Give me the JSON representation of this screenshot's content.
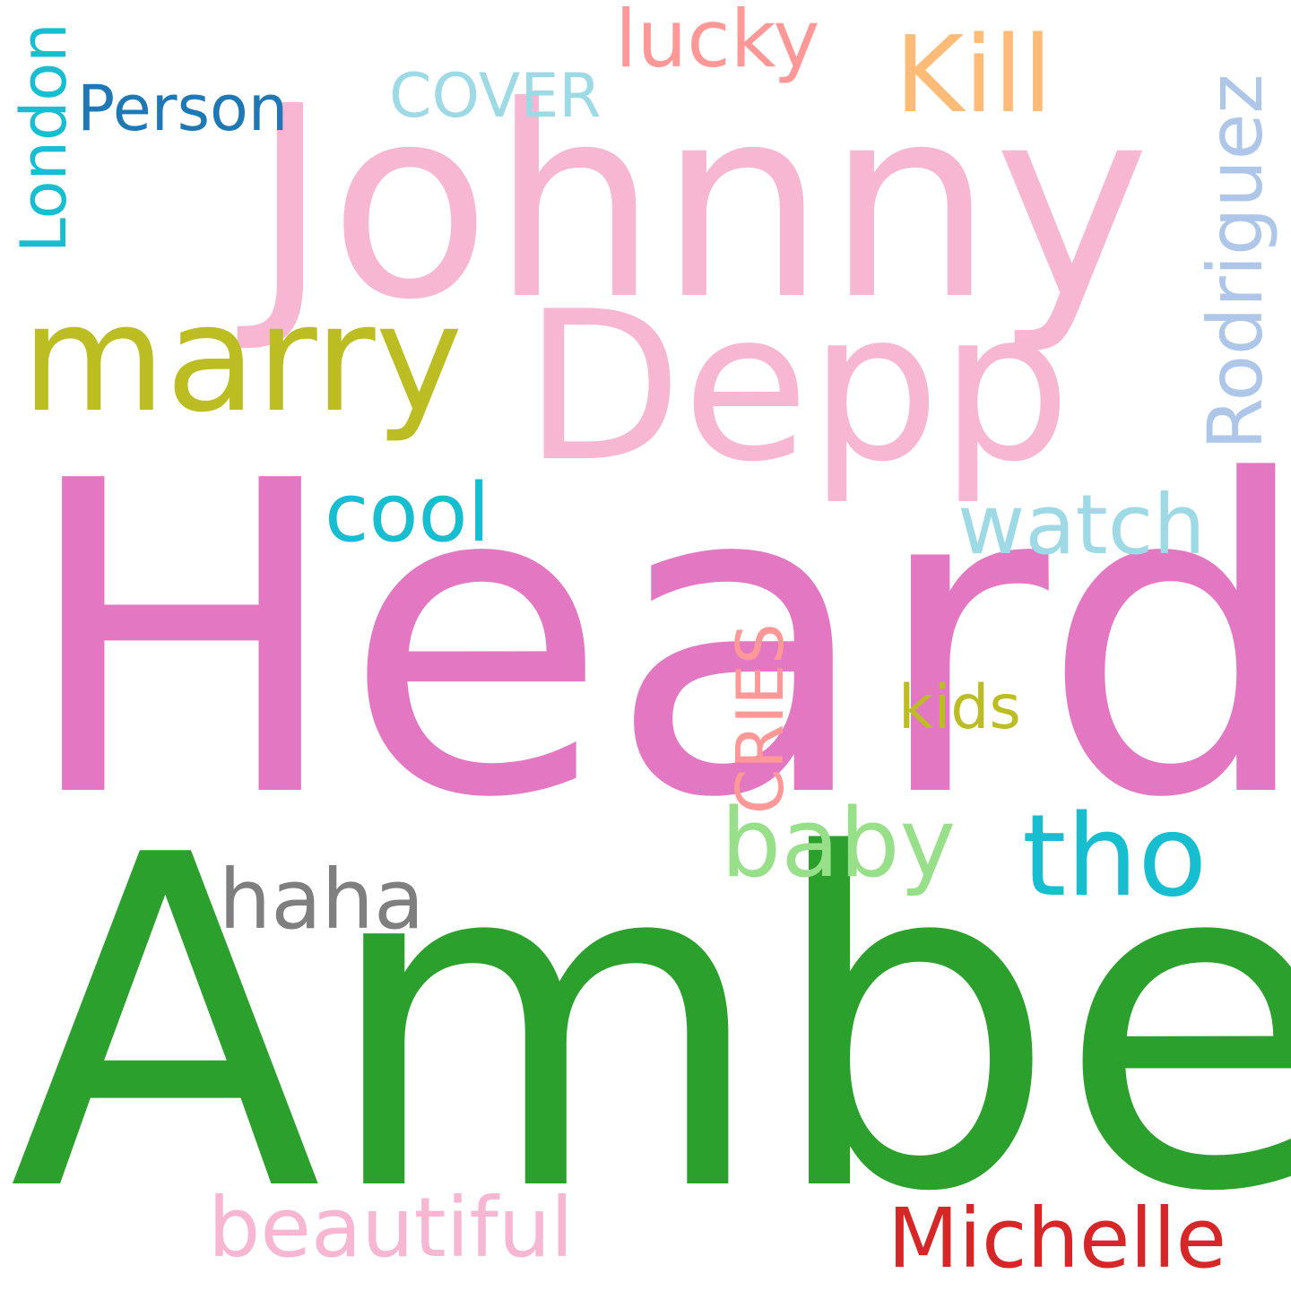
{
  "words": [
    {
      "text": "Heard",
      "color": "#e377c2"
    },
    {
      "text": "Amber",
      "color": "#2ca02c"
    },
    {
      "text": "Johnny",
      "color": "#f7b6d2"
    },
    {
      "text": "Depp",
      "color": "#f7b6d2"
    },
    {
      "text": "marry",
      "color": "#bcbd22"
    },
    {
      "text": "Kill",
      "color": "#ffbb78"
    },
    {
      "text": "lucky",
      "color": "#ff9896"
    },
    {
      "text": "COVER",
      "color": "#9edae5"
    },
    {
      "text": "Person",
      "color": "#1f77b4"
    },
    {
      "text": "London",
      "color": "#17becf"
    },
    {
      "text": "Rodriguez",
      "color": "#aec7e8"
    },
    {
      "text": "cool",
      "color": "#17becf"
    },
    {
      "text": "watch",
      "color": "#9edae5"
    },
    {
      "text": "CRIES",
      "color": "#ff9896"
    },
    {
      "text": "kids",
      "color": "#bcbd22"
    },
    {
      "text": "baby",
      "color": "#98df8a"
    },
    {
      "text": "tho",
      "color": "#17becf"
    },
    {
      "text": "haha",
      "color": "#7f7f7f"
    },
    {
      "text": "beautiful",
      "color": "#f7b6d2"
    },
    {
      "text": "Michelle",
      "color": "#d62728"
    }
  ]
}
